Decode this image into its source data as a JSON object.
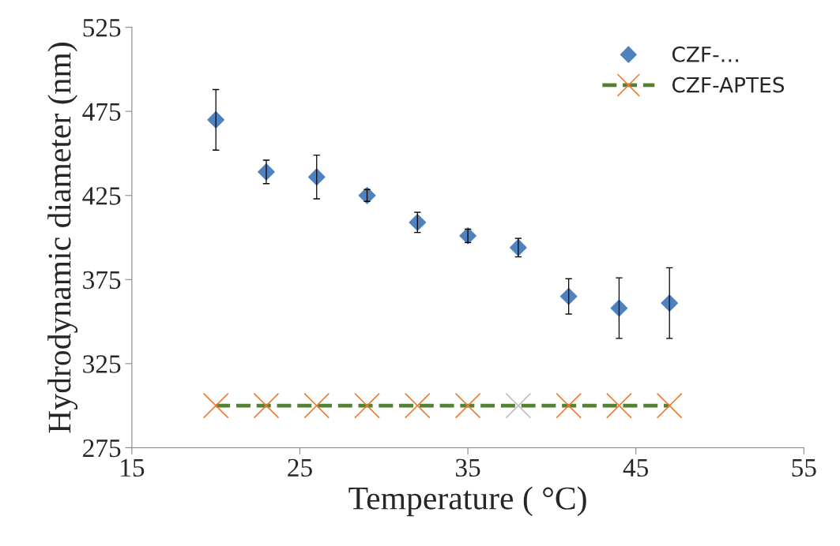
{
  "chart_data": {
    "type": "scatter",
    "xlabel": "Temperature ( °C)",
    "ylabel": "Hydrodynamic diameter (nm)",
    "xlim": [
      15,
      55
    ],
    "xticks": [
      15,
      25,
      35,
      45,
      55
    ],
    "ylim": [
      275,
      525
    ],
    "yticks": [
      275,
      325,
      375,
      425,
      475,
      525
    ],
    "grid": false,
    "legend": "top right",
    "series": [
      {
        "name": "CZF-…",
        "marker": "diamond",
        "color": "#4f81bd",
        "x": [
          20,
          23,
          26,
          29,
          32,
          35,
          38,
          41,
          44,
          47
        ],
        "values": [
          470,
          439,
          436,
          425,
          409,
          401,
          394,
          365,
          358,
          361
        ],
        "errors": [
          18,
          7,
          13,
          3.5,
          6,
          4,
          5.5,
          10.5,
          18,
          21
        ]
      },
      {
        "name": "CZF-APTES",
        "type": "line",
        "marker": "cross",
        "line_style": "dashed",
        "color": "#548235",
        "colors": [
          "#ed7d31",
          "#ed7d31",
          "#ed7d31",
          "#ed7d31",
          "#ed7d31",
          "#ed7d31",
          "#c0c0c0",
          "#ed7d31",
          "#ed7d31",
          "#ed7d31"
        ],
        "x": [
          20,
          23,
          26,
          29,
          32,
          35,
          38,
          41,
          44,
          47
        ],
        "values": [
          300,
          300,
          300,
          300,
          300,
          300,
          300,
          300,
          300,
          300
        ]
      }
    ]
  }
}
